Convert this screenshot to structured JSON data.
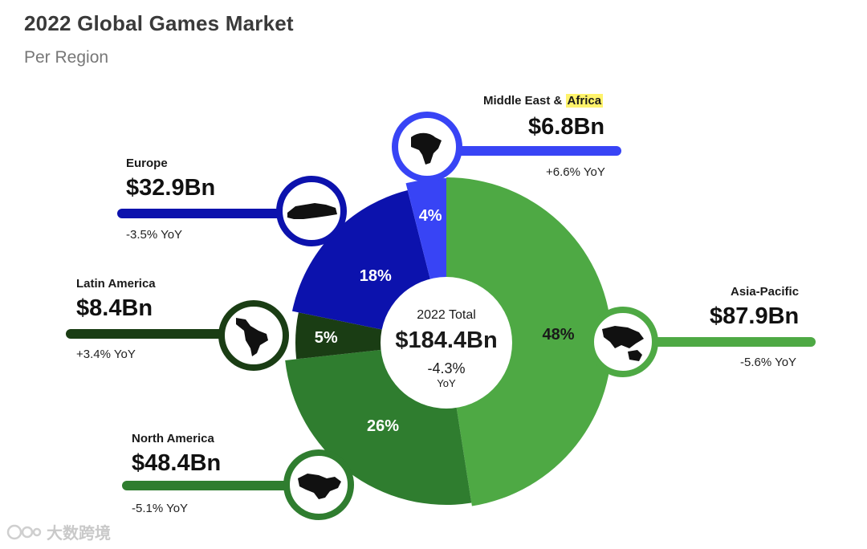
{
  "header": {
    "title": "2022 Global Games Market",
    "subtitle": "Per Region"
  },
  "colors": {
    "asia_pacific": "#4ea944",
    "north_america": "#2f7d2f",
    "latin_america": "#1a3d14",
    "europe": "#0c12ad",
    "mea": "#3844f5",
    "center": "#ffffff"
  },
  "center": {
    "label": "2022 Total",
    "value": "$184.4Bn",
    "change": "-4.3%",
    "change_unit": "YoY"
  },
  "regions": {
    "mea": {
      "name_prefix": "Middle East & ",
      "name_highlight": "Africa",
      "value": "$6.8Bn",
      "yoy": "+6.6% YoY",
      "icon": "africa-map-icon"
    },
    "europe": {
      "name": "Europe",
      "value": "$32.9Bn",
      "yoy": "-3.5% YoY",
      "icon": "europe-map-icon"
    },
    "latin_america": {
      "name": "Latin America",
      "value": "$8.4Bn",
      "yoy": "+3.4% YoY",
      "icon": "south-america-map-icon"
    },
    "north_america": {
      "name": "North America",
      "value": "$48.4Bn",
      "yoy": "-5.1% YoY",
      "icon": "north-america-map-icon"
    },
    "asia_pacific": {
      "name": "Asia-Pacific",
      "value": "$87.9Bn",
      "yoy": "-5.6% YoY",
      "icon": "asia-pacific-map-icon"
    }
  },
  "chart_data": {
    "type": "pie",
    "title": "2022 Global Games Market",
    "subtitle": "Per Region",
    "slices": [
      {
        "name": "Asia-Pacific",
        "percent": 48,
        "label": "48%",
        "value_bn": 87.9
      },
      {
        "name": "North America",
        "percent": 26,
        "label": "26%",
        "value_bn": 48.4
      },
      {
        "name": "Latin America",
        "percent": 5,
        "label": "5%",
        "value_bn": 8.4
      },
      {
        "name": "Europe",
        "percent": 18,
        "label": "18%",
        "value_bn": 32.9
      },
      {
        "name": "Middle East & Africa",
        "percent": 4,
        "label": "4%",
        "value_bn": 6.8
      }
    ],
    "total_bn": 184.4
  },
  "watermark": {
    "text": "大数跨境"
  }
}
